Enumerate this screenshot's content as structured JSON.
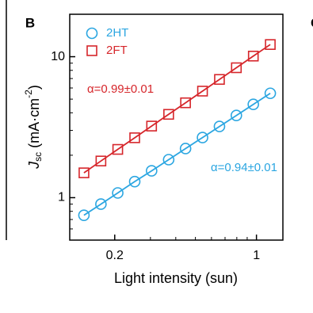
{
  "chart_data": {
    "type": "scatter",
    "panel_label": "B",
    "neighbor_panel_label": "C",
    "x_label": "Light intensity (sun)",
    "y_label": {
      "symbol": "J",
      "subscript": "sc",
      "unit": " (mA·cm",
      "exponent": "-2",
      "close": ")"
    },
    "log_x": true,
    "log_y": true,
    "xlim": [
      0.12,
      1.35
    ],
    "ylim": [
      0.5,
      20
    ],
    "xticks": [
      0.2,
      1
    ],
    "yticks": [
      1,
      10
    ],
    "xticks_minor": [
      0.3,
      0.4,
      0.5,
      0.6,
      0.7,
      0.8,
      0.9
    ],
    "yticks_minor": [
      0.6,
      0.7,
      0.8,
      0.9,
      2,
      3,
      4,
      5,
      6,
      7,
      8,
      9
    ],
    "legend": "upper left",
    "x": [
      0.141,
      0.171,
      0.207,
      0.251,
      0.304,
      0.369,
      0.447,
      0.542,
      0.657,
      0.796,
      0.965,
      1.17
    ],
    "series": [
      {
        "name": "2HT",
        "color": "#2ba6e1",
        "marker": "circle",
        "values": [
          0.75,
          0.9,
          1.08,
          1.3,
          1.55,
          1.86,
          2.23,
          2.67,
          3.2,
          3.83,
          4.59,
          5.5
        ]
      },
      {
        "name": "2FT",
        "color": "#d6262b",
        "marker": "square",
        "values": [
          1.5,
          1.82,
          2.2,
          2.66,
          3.22,
          3.9,
          4.71,
          5.7,
          6.9,
          8.35,
          10.1,
          12.2
        ]
      }
    ],
    "annotations": [
      {
        "text": "α=0.99±0.01",
        "series": 1
      },
      {
        "text": "α=0.94±0.01",
        "series": 0
      }
    ]
  }
}
